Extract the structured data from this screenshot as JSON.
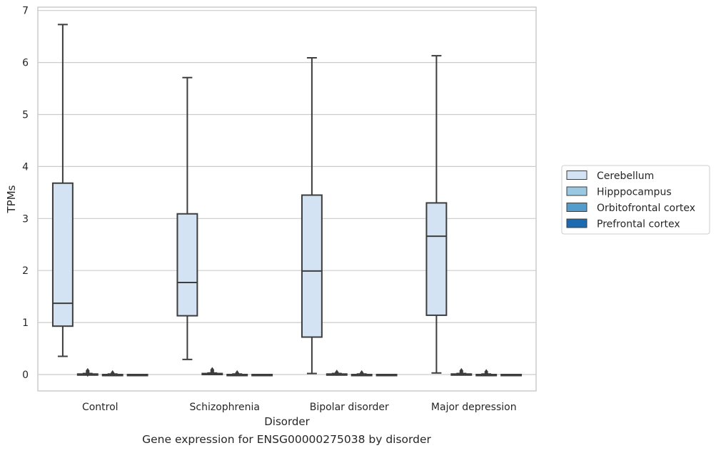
{
  "chart_data": {
    "type": "box",
    "title": "",
    "caption": "Gene expression for ENSG00000275038 by disorder",
    "xlabel": "Disorder",
    "ylabel": "TPMs",
    "ylim": [
      -0.32,
      7.1
    ],
    "yticks": [
      0,
      1,
      2,
      3,
      4,
      5,
      6,
      7
    ],
    "grid": "horizontal",
    "legend_position": "right",
    "categories": [
      "Control",
      "Schizophrenia",
      "Bipolar disorder",
      "Major depression"
    ],
    "series": [
      {
        "name": "Cerebellum",
        "color": "#d3e3f3",
        "boxes": [
          {
            "whislo": 0.35,
            "q1": 0.93,
            "med": 1.37,
            "q3": 3.68,
            "whishi": 6.73,
            "fliers": []
          },
          {
            "whislo": 0.29,
            "q1": 1.13,
            "med": 1.77,
            "q3": 3.09,
            "whishi": 5.71,
            "fliers": []
          },
          {
            "whislo": 0.02,
            "q1": 0.72,
            "med": 1.99,
            "q3": 3.45,
            "whishi": 6.09,
            "fliers": []
          },
          {
            "whislo": 0.03,
            "q1": 1.14,
            "med": 2.66,
            "q3": 3.3,
            "whishi": 6.13,
            "fliers": []
          }
        ]
      },
      {
        "name": "Hipppocampus",
        "color": "#9ac8e0",
        "boxes": [
          {
            "whislo": 0.0,
            "q1": 0.0,
            "med": 0.0,
            "q3": 0.01,
            "whishi": 0.02,
            "fliers": [
              0.05,
              0.07,
              0.03,
              0.01
            ]
          },
          {
            "whislo": 0.0,
            "q1": 0.0,
            "med": 0.01,
            "q3": 0.02,
            "whishi": 0.03,
            "fliers": [
              0.05,
              0.07,
              0.09
            ]
          },
          {
            "whislo": 0.0,
            "q1": 0.0,
            "med": 0.0,
            "q3": 0.01,
            "whishi": 0.02,
            "fliers": [
              0.03,
              0.04
            ]
          },
          {
            "whislo": 0.0,
            "q1": 0.0,
            "med": 0.0,
            "q3": 0.01,
            "whishi": 0.02,
            "fliers": [
              0.05,
              0.07,
              0.03
            ]
          }
        ]
      },
      {
        "name": "Orbitofrontal cortex",
        "color": "#529dcc",
        "boxes": [
          {
            "whislo": 0.0,
            "q1": 0.0,
            "med": 0.0,
            "q3": 0.0,
            "whishi": 0.01,
            "fliers": [
              0.02,
              0.03
            ]
          },
          {
            "whislo": 0.0,
            "q1": 0.0,
            "med": 0.0,
            "q3": 0.0,
            "whishi": 0.01,
            "fliers": [
              0.02,
              0.03
            ]
          },
          {
            "whislo": 0.0,
            "q1": 0.0,
            "med": 0.0,
            "q3": 0.0,
            "whishi": 0.01,
            "fliers": [
              0.02,
              0.03
            ]
          },
          {
            "whislo": 0.0,
            "q1": 0.0,
            "med": 0.0,
            "q3": 0.0,
            "whishi": 0.01,
            "fliers": [
              0.02,
              0.05
            ]
          }
        ]
      },
      {
        "name": "Prefrontal cortex",
        "color": "#1c6aaf",
        "boxes": [
          {
            "whislo": 0.0,
            "q1": 0.0,
            "med": 0.0,
            "q3": 0.0,
            "whishi": 0.0,
            "fliers": []
          },
          {
            "whislo": 0.0,
            "q1": 0.0,
            "med": 0.0,
            "q3": 0.0,
            "whishi": 0.0,
            "fliers": []
          },
          {
            "whislo": 0.0,
            "q1": 0.0,
            "med": 0.0,
            "q3": 0.0,
            "whishi": 0.0,
            "fliers": []
          },
          {
            "whislo": 0.0,
            "q1": 0.0,
            "med": 0.0,
            "q3": 0.0,
            "whishi": 0.0,
            "fliers": []
          }
        ]
      }
    ]
  }
}
